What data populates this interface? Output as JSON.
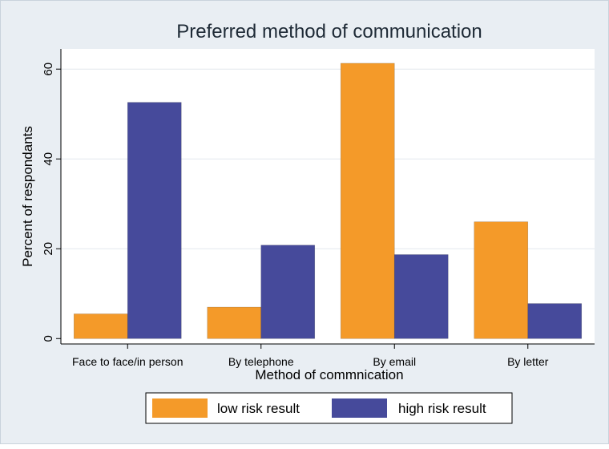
{
  "chart_data": {
    "type": "bar",
    "title": "Preferred method of communication",
    "xlabel": "Method of commnication",
    "ylabel": "Percent of respondants",
    "categories": [
      "Face to face/in person",
      "By telephone",
      "By email",
      "By letter"
    ],
    "series": [
      {
        "name": "low risk result",
        "color": "#f49a29",
        "values": [
          5.5,
          7.0,
          61.3,
          26.0
        ]
      },
      {
        "name": "high risk result",
        "color": "#464a9b",
        "values": [
          52.6,
          20.8,
          18.7,
          7.8
        ]
      }
    ],
    "yticks": [
      0,
      20,
      40,
      60
    ],
    "ylim": [
      -1.2,
      64.5
    ],
    "grid": true,
    "legend_position": "bottom"
  }
}
